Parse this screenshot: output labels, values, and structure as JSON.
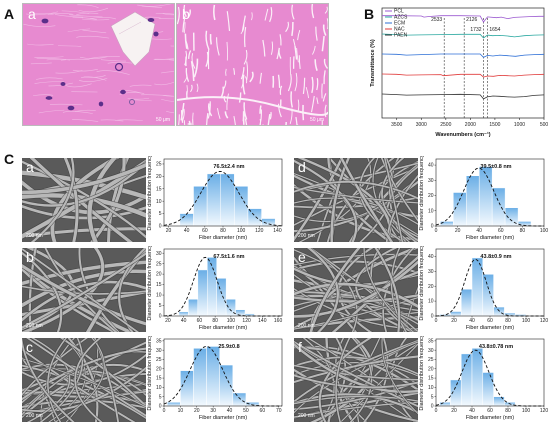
{
  "figure": {
    "panel_A": "A",
    "panel_B": "B",
    "panel_C": "C"
  },
  "panelA": {
    "sub_a": "a",
    "sub_b": "b",
    "scale_a": "50 μm",
    "scale_b": "50 μm",
    "colors": {
      "tissue": "#e78ad0",
      "stain_dark": "#5b2f8a",
      "void": "#f7f2f2"
    }
  },
  "chart_data": [
    {
      "type": "line",
      "panel": "B",
      "xlabel": "Wavenumbers (cm⁻¹)",
      "ylabel": "Transmittance (%)",
      "xlim": [
        3800,
        500
      ],
      "x_ticks": [
        3500,
        3000,
        2500,
        2000,
        1500,
        1000,
        500
      ],
      "reference_lines": [
        2533,
        2126,
        1732,
        1654
      ],
      "legend_position": "top-left",
      "series": [
        {
          "name": "PCL",
          "color": "#9b59d0",
          "x": [
            3800,
            3500,
            3000,
            2945,
            2865,
            2600,
            2200,
            1800,
            1732,
            1650,
            1470,
            1370,
            1240,
            1170,
            1100,
            1000,
            800,
            600,
            500
          ],
          "y": [
            0.94,
            0.94,
            0.93,
            0.89,
            0.91,
            0.94,
            0.94,
            0.93,
            0.72,
            0.9,
            0.87,
            0.89,
            0.84,
            0.86,
            0.88,
            0.89,
            0.91,
            0.92,
            0.92
          ]
        },
        {
          "name": "AZCS",
          "color": "#2aa8a0",
          "x": [
            3800,
            3500,
            3300,
            3000,
            2600,
            2200,
            1800,
            1732,
            1650,
            1550,
            1400,
            1240,
            1100,
            900,
            700,
            500
          ],
          "y": [
            0.76,
            0.74,
            0.72,
            0.73,
            0.74,
            0.75,
            0.75,
            0.62,
            0.72,
            0.7,
            0.71,
            0.69,
            0.66,
            0.7,
            0.72,
            0.73
          ]
        },
        {
          "name": "ECM",
          "color": "#2d6fd6",
          "x": [
            3800,
            3500,
            3300,
            3000,
            2600,
            2200,
            1800,
            1732,
            1650,
            1540,
            1400,
            1240,
            1080,
            900,
            700,
            500
          ],
          "y": [
            0.62,
            0.61,
            0.58,
            0.6,
            0.62,
            0.62,
            0.62,
            0.5,
            0.57,
            0.55,
            0.58,
            0.56,
            0.54,
            0.58,
            0.6,
            0.61
          ]
        },
        {
          "name": "NAC",
          "color": "#e03a3a",
          "x": [
            3800,
            3500,
            3300,
            3000,
            2600,
            2550,
            2200,
            1800,
            1732,
            1650,
            1530,
            1400,
            1240,
            1100,
            900,
            700,
            500
          ],
          "y": [
            0.49,
            0.48,
            0.45,
            0.46,
            0.47,
            0.43,
            0.48,
            0.48,
            0.38,
            0.42,
            0.41,
            0.44,
            0.43,
            0.42,
            0.45,
            0.47,
            0.48
          ]
        },
        {
          "name": "PAEN",
          "color": "#333333",
          "x": [
            3800,
            3500,
            3300,
            3000,
            2600,
            2200,
            1800,
            1732,
            1654,
            1540,
            1400,
            1240,
            1100,
            900,
            700,
            500
          ],
          "y": [
            0.35,
            0.33,
            0.31,
            0.32,
            0.33,
            0.34,
            0.32,
            0.18,
            0.25,
            0.28,
            0.27,
            0.25,
            0.24,
            0.26,
            0.3,
            0.32
          ]
        }
      ],
      "ylim": [
        0,
        1
      ],
      "title": ""
    },
    {
      "type": "bar",
      "panel": "C-a",
      "annotation": "76.5±2.4 nm",
      "xlabel": "Fiber diameter (nm)",
      "ylabel": "Diameter distribution frequency",
      "x_ticks": [
        20,
        40,
        60,
        80,
        100,
        120,
        140
      ],
      "y_ticks": [
        0,
        5,
        10,
        15,
        20,
        25
      ],
      "xlim": [
        15,
        145
      ],
      "ylim": [
        0,
        27
      ],
      "bin_centers": [
        40,
        55,
        70,
        85,
        100,
        115,
        130
      ],
      "values": [
        5,
        16,
        21,
        21,
        16,
        7,
        3
      ],
      "fit": {
        "type": "gaussian",
        "mean": 76.5,
        "sd": 21,
        "peak": 22
      }
    },
    {
      "type": "bar",
      "panel": "C-b",
      "annotation": "67.5±1.6 nm",
      "xlabel": "Fiber diameter (nm)",
      "ylabel": "Diameter distribution frequency",
      "x_ticks": [
        20,
        40,
        60,
        80,
        100,
        120,
        140,
        160
      ],
      "y_ticks": [
        0,
        5,
        10,
        15,
        20,
        25,
        30
      ],
      "xlim": [
        15,
        165
      ],
      "ylim": [
        0,
        32
      ],
      "bin_centers": [
        40,
        52,
        64,
        76,
        88,
        100,
        112,
        124
      ],
      "values": [
        2,
        8,
        22,
        28,
        18,
        8,
        3,
        1
      ],
      "fit": {
        "type": "gaussian",
        "mean": 67.5,
        "sd": 15,
        "peak": 28
      }
    },
    {
      "type": "bar",
      "panel": "C-c",
      "annotation": "25.9±0.8",
      "xlabel": "Fiber diameter (nm)",
      "ylabel": "Diameter distribution frequency",
      "x_ticks": [
        0,
        10,
        20,
        30,
        40,
        50,
        60,
        70
      ],
      "y_ticks": [
        0,
        5,
        10,
        15,
        20,
        25,
        30,
        35
      ],
      "xlim": [
        0,
        72
      ],
      "ylim": [
        0,
        36
      ],
      "bin_centers": [
        6,
        14,
        22,
        30,
        38,
        46,
        54
      ],
      "values": [
        2,
        19,
        31,
        32,
        22,
        7,
        2
      ],
      "fit": {
        "type": "gaussian",
        "mean": 25.9,
        "sd": 10,
        "peak": 32
      }
    },
    {
      "type": "bar",
      "panel": "C-d",
      "annotation": "39.5±0.8 nm",
      "xlabel": "Fiber diameter (nm)",
      "ylabel": "Diameter distribution frequency",
      "x_ticks": [
        0,
        20,
        40,
        60,
        80,
        100
      ],
      "y_ticks": [
        0,
        10,
        20,
        30,
        40
      ],
      "xlim": [
        0,
        100
      ],
      "ylim": [
        0,
        44
      ],
      "bin_centers": [
        10,
        22,
        34,
        46,
        58,
        70,
        82
      ],
      "values": [
        3,
        22,
        33,
        39,
        25,
        12,
        3
      ],
      "fit": {
        "type": "gaussian",
        "mean": 39.5,
        "sd": 14,
        "peak": 38
      }
    },
    {
      "type": "bar",
      "panel": "C-e",
      "annotation": "43.8±0.9 nm",
      "xlabel": "Fiber diameter (nm)",
      "ylabel": "Diameter distribution frequency",
      "x_ticks": [
        0,
        20,
        40,
        60,
        80,
        100,
        120
      ],
      "y_ticks": [
        0,
        10,
        20,
        30,
        40
      ],
      "xlim": [
        0,
        120
      ],
      "ylim": [
        0,
        45
      ],
      "bin_centers": [
        10,
        22,
        34,
        46,
        58,
        70,
        82,
        94
      ],
      "values": [
        1,
        3,
        18,
        39,
        28,
        6,
        2,
        1
      ],
      "fit": {
        "type": "gaussian",
        "mean": 43.8,
        "sd": 12,
        "peak": 38
      }
    },
    {
      "type": "bar",
      "panel": "C-f",
      "annotation": "43.8±0.78 nm",
      "xlabel": "Fiber diameter (nm)",
      "ylabel": "Diameter distribution frequency",
      "x_ticks": [
        0,
        20,
        40,
        60,
        80,
        100,
        120
      ],
      "y_ticks": [
        0,
        5,
        10,
        15,
        20,
        25,
        30,
        35
      ],
      "xlim": [
        0,
        120
      ],
      "ylim": [
        0,
        36
      ],
      "bin_centers": [
        10,
        22,
        34,
        46,
        58,
        70,
        82
      ],
      "values": [
        2,
        14,
        28,
        31,
        18,
        5,
        2
      ],
      "fit": {
        "type": "gaussian",
        "mean": 43.8,
        "sd": 15,
        "peak": 30
      }
    }
  ],
  "panelC": {
    "subs": [
      "a",
      "b",
      "c",
      "d",
      "e",
      "f"
    ],
    "scale": "200 nm",
    "bar_color_top": "#6aaee6",
    "bar_color_bottom": "#f3f9fe"
  }
}
